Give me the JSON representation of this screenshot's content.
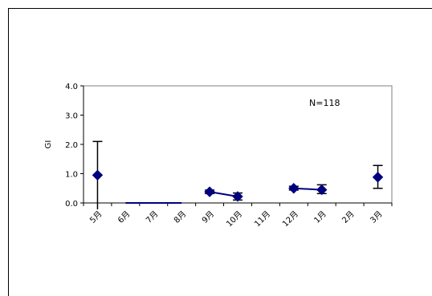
{
  "chart_data": {
    "type": "line",
    "title": "",
    "ylabel": "GI",
    "xlabel": "",
    "annotation": "N=118",
    "categories": [
      "5月",
      "6月",
      "7月",
      "8月",
      "9月",
      "10月",
      "11月",
      "12月",
      "1月",
      "2月",
      "3月"
    ],
    "ylim": [
      0,
      4
    ],
    "yticks": [
      "0.0",
      "1.0",
      "2.0",
      "3.0",
      "4.0"
    ],
    "grid": false,
    "legend": "none",
    "series_color": "#000080",
    "points": [
      {
        "x": "5月",
        "offset": 0.0,
        "y": 0.95,
        "err_low": null,
        "err_high": 2.1
      },
      {
        "x": "9月",
        "offset": 0.0,
        "y": 0.38,
        "err_low": 0.32,
        "err_high": 0.44
      },
      {
        "x": "10月",
        "offset": 0.0,
        "y": 0.22,
        "err_low": 0.1,
        "err_high": 0.34
      },
      {
        "x": "12月",
        "offset": 0.0,
        "y": 0.5,
        "err_low": 0.44,
        "err_high": 0.57
      },
      {
        "x": "1月",
        "offset": 0.0,
        "y": 0.45,
        "err_low": 0.32,
        "err_high": 0.62
      },
      {
        "x": "3月",
        "offset": 0.0,
        "y": 0.88,
        "err_low": 0.5,
        "err_high": 1.28
      }
    ],
    "segments": [
      [
        "9月",
        "10月"
      ],
      [
        "12月",
        "1月"
      ]
    ],
    "zero_line": [
      "6月",
      "8月"
    ]
  }
}
